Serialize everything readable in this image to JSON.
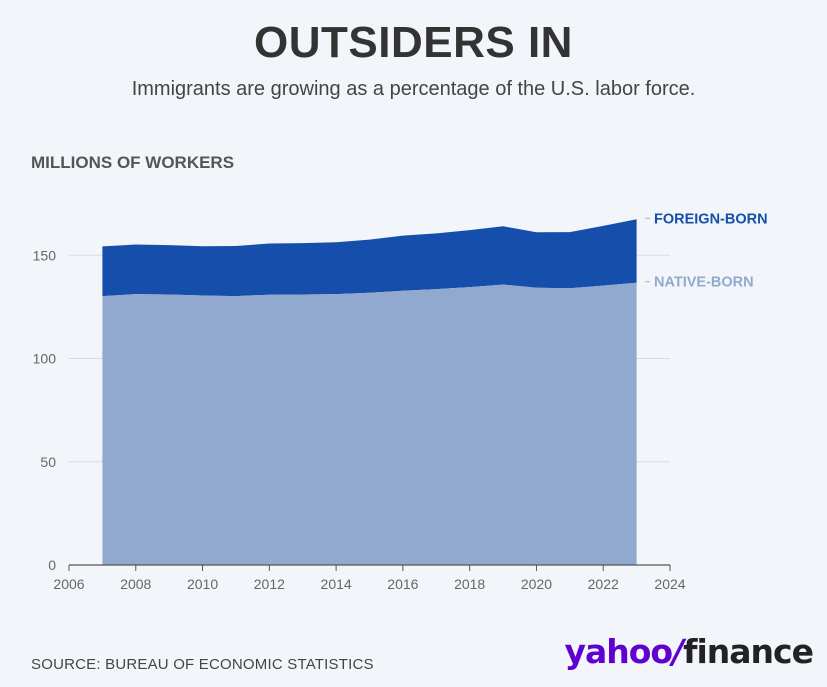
{
  "title": "OUTSIDERS IN",
  "subtitle": "Immigrants are growing as a percentage of the U.S. labor force.",
  "source": "SOURCE: BUREAU OF ECONOMIC STATISTICS",
  "logo": {
    "part1": "yahoo",
    "slash": "/",
    "part2": "finance"
  },
  "colors": {
    "foreign": "#164eab",
    "native": "#91a9cf",
    "foreign_label": "#164eab",
    "native_label": "#91a9cf",
    "grid": "#d6dbe2",
    "axis": "#666666"
  },
  "chart_data": {
    "type": "area",
    "stacked": true,
    "ylabel": "MILLIONS OF WORKERS",
    "xlabel": "",
    "xlim": [
      2006,
      2024
    ],
    "ylim": [
      0,
      170
    ],
    "x_ticks": [
      2006,
      2008,
      2010,
      2012,
      2014,
      2016,
      2018,
      2020,
      2022,
      2024
    ],
    "y_ticks": [
      0,
      50,
      100,
      150
    ],
    "x": [
      2007,
      2008,
      2009,
      2010,
      2011,
      2012,
      2013,
      2014,
      2015,
      2016,
      2017,
      2018,
      2019,
      2020,
      2021,
      2022,
      2023
    ],
    "series": [
      {
        "name": "NATIVE-BORN",
        "values": [
          130.2,
          131.2,
          131.0,
          130.5,
          130.2,
          130.9,
          131.0,
          131.2,
          131.8,
          132.8,
          133.6,
          134.6,
          135.8,
          134.3,
          134.0,
          135.3,
          136.7
        ]
      },
      {
        "name": "FOREIGN-BORN",
        "values": [
          24.1,
          24.0,
          23.9,
          23.9,
          24.3,
          24.8,
          24.9,
          25.1,
          25.8,
          26.7,
          27.0,
          27.6,
          28.2,
          26.8,
          27.2,
          28.9,
          30.7
        ]
      }
    ]
  }
}
